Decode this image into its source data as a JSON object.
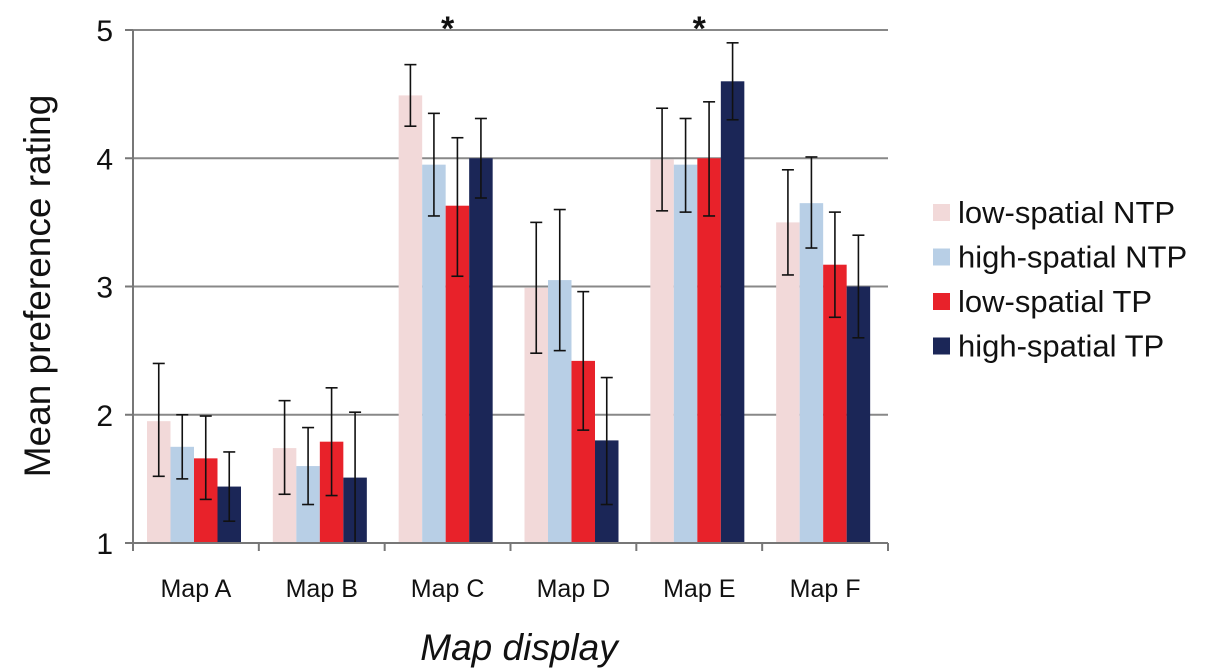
{
  "chart_data": {
    "type": "bar",
    "title": "",
    "xlabel": "Map display",
    "ylabel": "Mean preference rating",
    "ylim": [
      1,
      5
    ],
    "yticks": [
      "1",
      "2",
      "3",
      "4",
      "5"
    ],
    "grid": "horizontal",
    "legend_position": "right",
    "categories": [
      "Map A",
      "Map B",
      "Map C",
      "Map D",
      "Map E",
      "Map F"
    ],
    "significance_marks": [
      "",
      "",
      "*",
      "",
      "*",
      ""
    ],
    "series": [
      {
        "name": "low-spatial NTP",
        "color": "#f2d9d9",
        "values": [
          1.95,
          1.74,
          4.49,
          2.99,
          3.99,
          3.5
        ],
        "error": [
          [
            1.52,
            2.4
          ],
          [
            1.38,
            2.11
          ],
          [
            4.25,
            4.73
          ],
          [
            2.48,
            3.5
          ],
          [
            3.59,
            4.39
          ],
          [
            3.09,
            3.91
          ]
        ]
      },
      {
        "name": "high-spatial NTP",
        "color": "#b8cfe6",
        "values": [
          1.75,
          1.6,
          3.95,
          3.05,
          3.95,
          3.65
        ],
        "error": [
          [
            1.5,
            2.0
          ],
          [
            1.3,
            1.9
          ],
          [
            3.55,
            4.35
          ],
          [
            2.5,
            3.6
          ],
          [
            3.58,
            4.31
          ],
          [
            3.3,
            4.01
          ]
        ]
      },
      {
        "name": "low-spatial TP",
        "color": "#e8222a",
        "values": [
          1.66,
          1.79,
          3.63,
          2.42,
          4.0,
          3.17
        ],
        "error": [
          [
            1.34,
            1.99
          ],
          [
            1.37,
            2.21
          ],
          [
            3.08,
            4.16
          ],
          [
            1.88,
            2.96
          ],
          [
            3.55,
            4.44
          ],
          [
            2.76,
            3.58
          ]
        ]
      },
      {
        "name": "high-spatial TP",
        "color": "#1b2657",
        "values": [
          1.44,
          1.51,
          4.0,
          1.8,
          4.6,
          3.0
        ],
        "error": [
          [
            1.17,
            1.71
          ],
          [
            1.0,
            2.02
          ],
          [
            3.69,
            4.31
          ],
          [
            1.3,
            2.29
          ],
          [
            4.3,
            4.9
          ],
          [
            2.6,
            3.4
          ]
        ]
      }
    ]
  }
}
